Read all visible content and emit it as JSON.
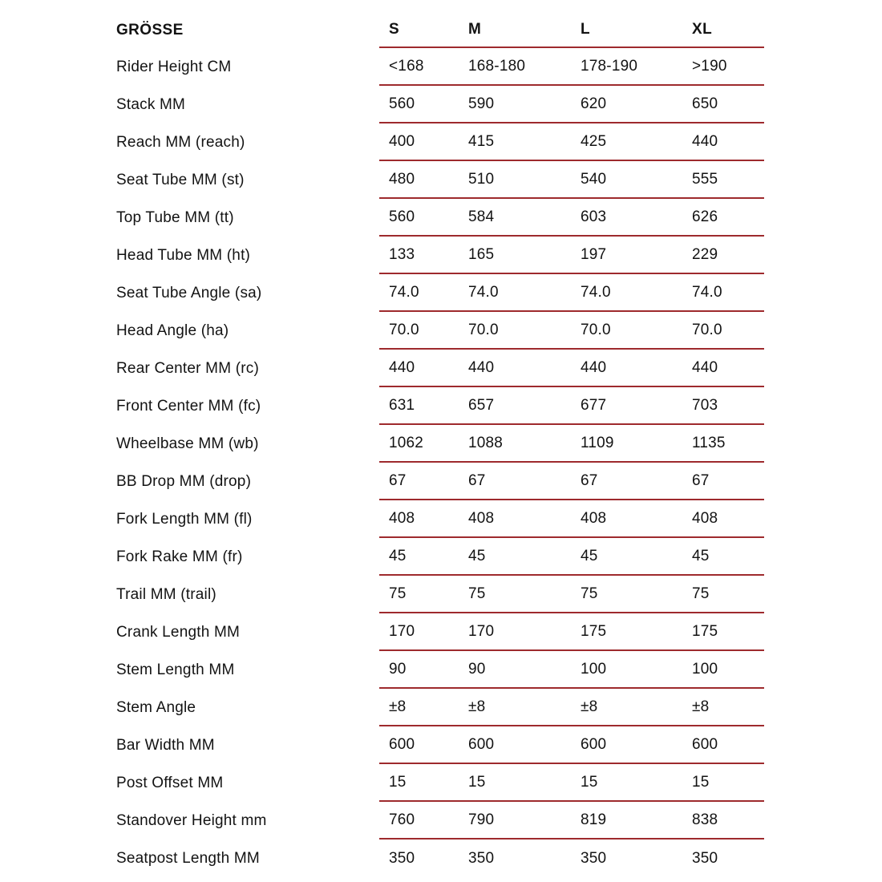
{
  "chart_data": {
    "type": "table",
    "corner_label": "GRÖSSE",
    "columns": [
      "S",
      "M",
      "L",
      "XL"
    ],
    "rows": [
      {
        "label": "Rider Height CM",
        "values": [
          "<168",
          "168-180",
          "178-190",
          ">190"
        ]
      },
      {
        "label": "Stack MM",
        "values": [
          "560",
          "590",
          "620",
          "650"
        ]
      },
      {
        "label": "Reach MM (reach)",
        "values": [
          "400",
          "415",
          "425",
          "440"
        ]
      },
      {
        "label": "Seat Tube MM (st)",
        "values": [
          "480",
          "510",
          "540",
          "555"
        ]
      },
      {
        "label": "Top Tube MM (tt)",
        "values": [
          "560",
          "584",
          "603",
          "626"
        ]
      },
      {
        "label": "Head Tube MM (ht)",
        "values": [
          "133",
          "165",
          "197",
          "229"
        ]
      },
      {
        "label": "Seat Tube Angle (sa)",
        "values": [
          "74.0",
          "74.0",
          "74.0",
          "74.0"
        ]
      },
      {
        "label": "Head Angle (ha)",
        "values": [
          "70.0",
          "70.0",
          "70.0",
          "70.0"
        ]
      },
      {
        "label": "Rear Center MM (rc)",
        "values": [
          "440",
          "440",
          "440",
          "440"
        ]
      },
      {
        "label": "Front Center MM (fc)",
        "values": [
          "631",
          "657",
          "677",
          "703"
        ]
      },
      {
        "label": "Wheelbase MM (wb)",
        "values": [
          "1062",
          "1088",
          "1109",
          "1135"
        ]
      },
      {
        "label": "BB Drop MM (drop)",
        "values": [
          "67",
          "67",
          "67",
          "67"
        ]
      },
      {
        "label": "Fork Length MM (fl)",
        "values": [
          "408",
          "408",
          "408",
          "408"
        ]
      },
      {
        "label": "Fork Rake MM (fr)",
        "values": [
          "45",
          "45",
          "45",
          "45"
        ]
      },
      {
        "label": "Trail MM (trail)",
        "values": [
          "75",
          "75",
          "75",
          "75"
        ]
      },
      {
        "label": "Crank Length MM",
        "values": [
          "170",
          "170",
          "175",
          "175"
        ]
      },
      {
        "label": "Stem Length MM",
        "values": [
          "90",
          "90",
          "100",
          "100"
        ]
      },
      {
        "label": "Stem Angle",
        "values": [
          "±8",
          "±8",
          "±8",
          "±8"
        ]
      },
      {
        "label": "Bar Width MM",
        "values": [
          "600",
          "600",
          "600",
          "600"
        ]
      },
      {
        "label": "Post Offset MM",
        "values": [
          "15",
          "15",
          "15",
          "15"
        ]
      },
      {
        "label": "Standover Height mm",
        "values": [
          "760",
          "790",
          "819",
          "838"
        ]
      },
      {
        "label": "Seatpost Length MM",
        "values": [
          "350",
          "350",
          "350",
          "350"
        ]
      }
    ],
    "layout": {
      "rule_color": "#9e2a2d",
      "text_color": "#131313",
      "background": "#ffffff",
      "rules_span": "value-columns-only",
      "grid": "horizontal-rules"
    }
  }
}
